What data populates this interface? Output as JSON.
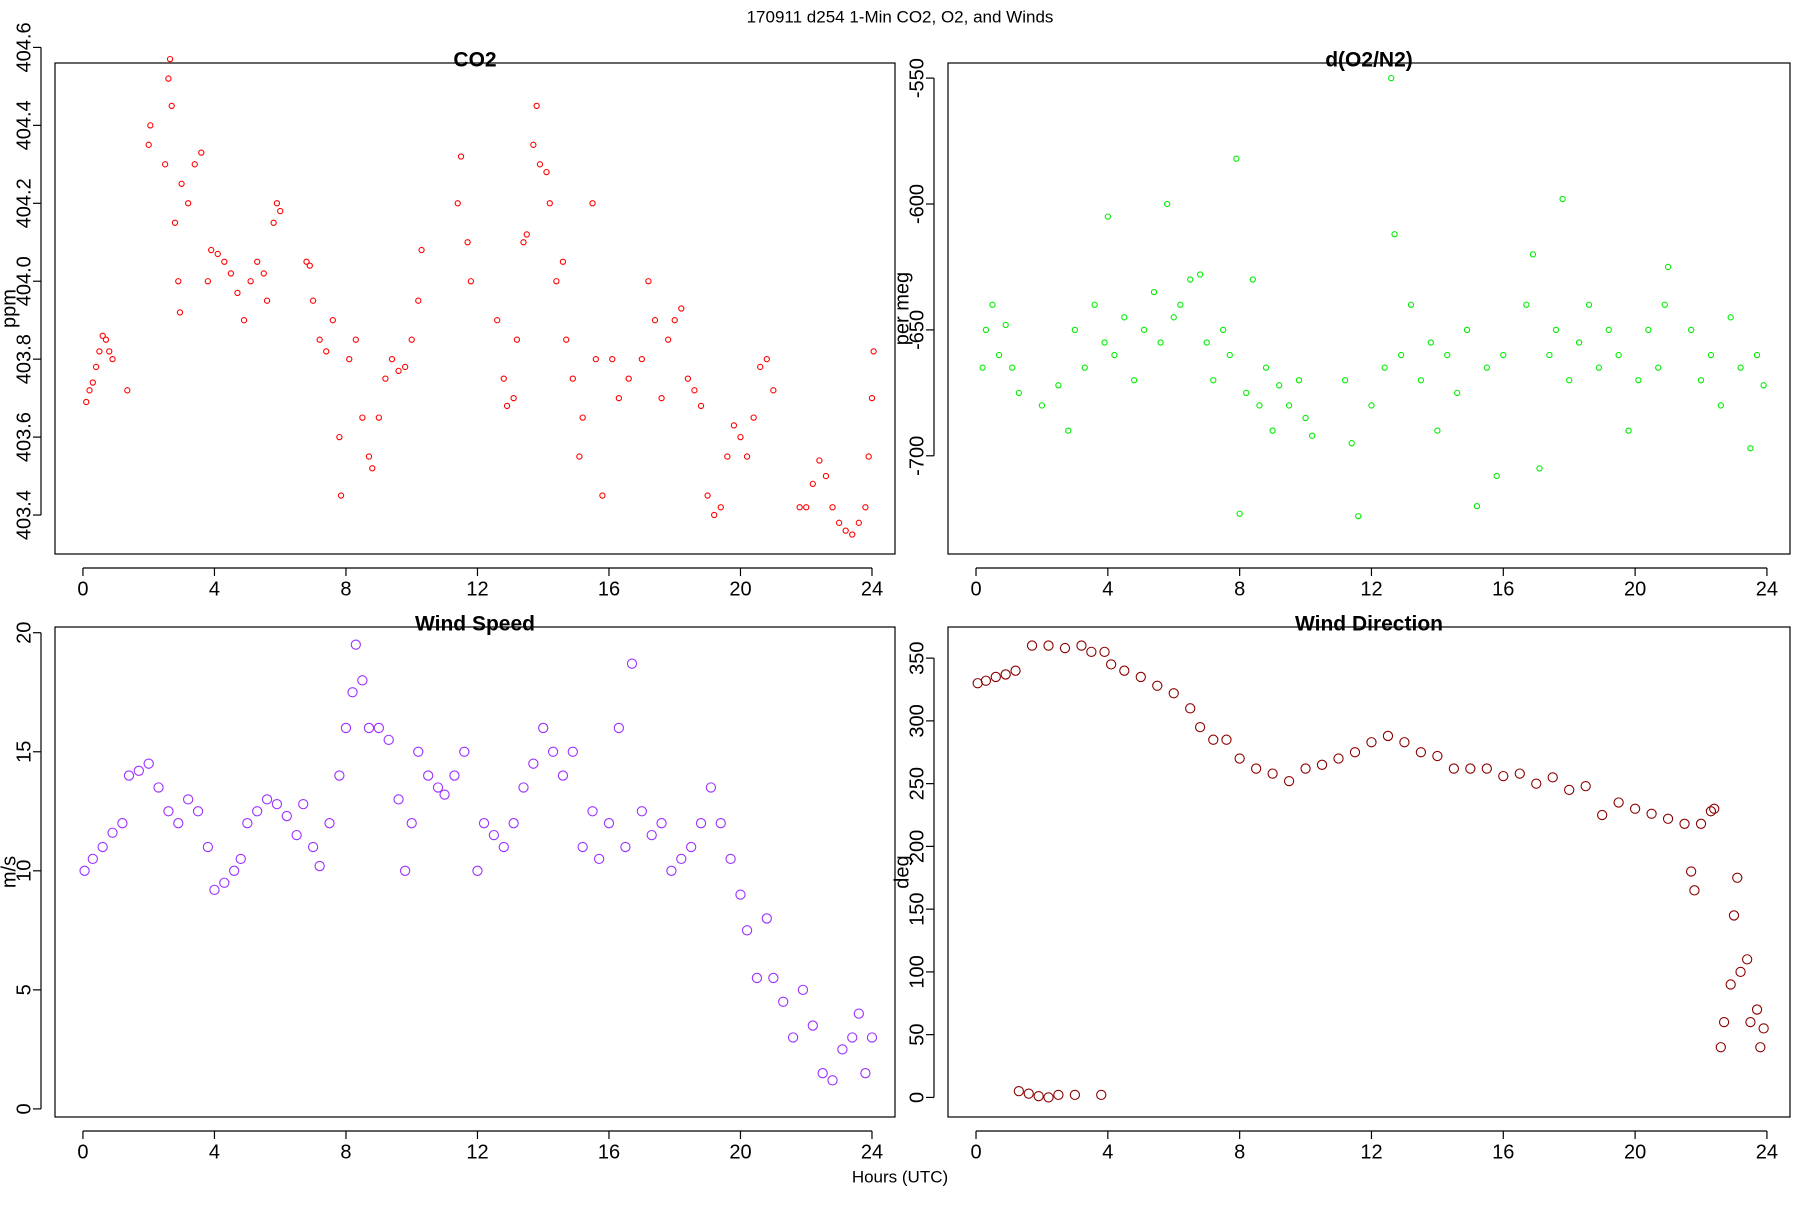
{
  "title": "170911   d254   1-Min CO2, O2, and Winds",
  "xlabel": "Hours (UTC)",
  "chart_data": [
    {
      "type": "scatter",
      "title": "CO2",
      "ylabel": "ppm",
      "color": "#ff0000",
      "xlim": [
        -0.85,
        24.7
      ],
      "xticks": [
        0,
        4,
        8,
        12,
        16,
        20,
        24
      ],
      "ylim": [
        403.3,
        404.56
      ],
      "yticks": [
        403.4,
        403.6,
        403.8,
        {
          "value": 404,
          "label": "404.0"
        },
        404.2,
        404.4,
        404.6
      ],
      "x": [
        0.1,
        0.2,
        0.3,
        0.4,
        0.5,
        0.6,
        0.7,
        0.8,
        0.9,
        1.35,
        2.0,
        2.05,
        2.5,
        2.6,
        2.65,
        2.7,
        2.8,
        2.9,
        2.95,
        3.0,
        3.2,
        3.4,
        3.6,
        3.8,
        3.9,
        4.1,
        4.3,
        4.5,
        4.7,
        4.9,
        5.1,
        5.3,
        5.5,
        5.6,
        5.8,
        5.9,
        6.0,
        6.8,
        6.9,
        7.0,
        7.2,
        7.4,
        7.6,
        7.8,
        7.85,
        8.1,
        8.3,
        8.5,
        8.7,
        8.8,
        9.0,
        9.2,
        9.4,
        9.6,
        9.8,
        10.0,
        10.2,
        10.3,
        11.4,
        11.5,
        11.7,
        11.8,
        12.6,
        12.8,
        12.9,
        13.1,
        13.2,
        13.4,
        13.5,
        13.7,
        13.8,
        13.9,
        14.1,
        14.2,
        14.4,
        14.6,
        14.7,
        14.9,
        15.1,
        15.2,
        15.5,
        15.6,
        15.8,
        16.1,
        16.3,
        16.6,
        17.0,
        17.2,
        17.4,
        17.6,
        17.8,
        18.0,
        18.2,
        18.4,
        18.6,
        18.8,
        19.0,
        19.2,
        19.4,
        19.6,
        19.8,
        20.0,
        20.2,
        20.4,
        20.6,
        20.8,
        21.0,
        21.8,
        22.0,
        22.2,
        22.4,
        22.6,
        22.8,
        23.0,
        23.2,
        23.4,
        23.6,
        23.8,
        23.9,
        24.0,
        24.05
      ],
      "values": [
        403.69,
        403.72,
        403.74,
        403.78,
        403.82,
        403.86,
        403.85,
        403.82,
        403.8,
        403.72,
        404.35,
        404.4,
        404.3,
        404.52,
        404.57,
        404.45,
        404.15,
        404.0,
        403.92,
        404.25,
        404.2,
        404.3,
        404.33,
        404.0,
        404.08,
        404.07,
        404.05,
        404.02,
        403.97,
        403.9,
        404.0,
        404.05,
        404.02,
        403.95,
        404.15,
        404.2,
        404.18,
        404.05,
        404.04,
        403.95,
        403.85,
        403.82,
        403.9,
        403.6,
        403.45,
        403.8,
        403.85,
        403.65,
        403.55,
        403.52,
        403.65,
        403.75,
        403.8,
        403.77,
        403.78,
        403.85,
        403.95,
        404.08,
        404.2,
        404.32,
        404.1,
        404.0,
        403.9,
        403.75,
        403.68,
        403.7,
        403.85,
        404.1,
        404.12,
        404.35,
        404.45,
        404.3,
        404.28,
        404.2,
        404.0,
        404.05,
        403.85,
        403.75,
        403.55,
        403.65,
        404.2,
        403.8,
        403.45,
        403.8,
        403.7,
        403.75,
        403.8,
        404.0,
        403.9,
        403.7,
        403.85,
        403.9,
        403.93,
        403.75,
        403.72,
        403.68,
        403.45,
        403.4,
        403.42,
        403.55,
        403.63,
        403.6,
        403.55,
        403.65,
        403.78,
        403.8,
        403.72,
        403.42,
        403.42,
        403.48,
        403.54,
        403.5,
        403.42,
        403.38,
        403.36,
        403.35,
        403.38,
        403.42,
        403.55,
        403.7,
        403.82
      ]
    },
    {
      "type": "scatter",
      "title": "d(O2/N2)",
      "ylabel": "per meg",
      "color": "#00ee00",
      "xlim": [
        -0.85,
        24.7
      ],
      "xticks": [
        0,
        4,
        8,
        12,
        16,
        20,
        24
      ],
      "ylim": [
        -739,
        -544
      ],
      "yticks": [
        -700,
        -650,
        -600,
        -550
      ],
      "x": [
        0.2,
        0.3,
        0.5,
        0.7,
        0.9,
        1.1,
        1.3,
        2.0,
        2.5,
        2.8,
        3.0,
        3.3,
        3.6,
        3.9,
        4.0,
        4.2,
        4.5,
        4.8,
        5.1,
        5.4,
        5.6,
        5.8,
        6.0,
        6.2,
        6.5,
        6.8,
        7.0,
        7.2,
        7.5,
        7.7,
        7.9,
        8.0,
        8.2,
        8.4,
        8.6,
        8.8,
        9.0,
        9.2,
        9.5,
        9.8,
        10.0,
        10.2,
        11.2,
        11.4,
        11.6,
        12.0,
        12.4,
        12.6,
        12.7,
        12.9,
        13.2,
        13.5,
        13.8,
        14.0,
        14.3,
        14.6,
        14.9,
        15.2,
        15.5,
        15.8,
        16.0,
        16.7,
        16.9,
        17.1,
        17.4,
        17.6,
        17.8,
        18.0,
        18.3,
        18.6,
        18.9,
        19.2,
        19.5,
        19.8,
        20.1,
        20.4,
        20.7,
        20.9,
        21.0,
        21.7,
        22.0,
        22.3,
        22.6,
        22.9,
        23.2,
        23.5,
        23.7,
        23.9
      ],
      "values": [
        -665,
        -650,
        -640,
        -660,
        -648,
        -665,
        -675,
        -680,
        -672,
        -690,
        -650,
        -665,
        -640,
        -655,
        -605,
        -660,
        -645,
        -670,
        -650,
        -635,
        -655,
        -600,
        -645,
        -640,
        -630,
        -628,
        -655,
        -670,
        -650,
        -660,
        -582,
        -723,
        -675,
        -630,
        -680,
        -665,
        -690,
        -672,
        -680,
        -670,
        -685,
        -692,
        -670,
        -695,
        -724,
        -680,
        -665,
        -550,
        -612,
        -660,
        -640,
        -670,
        -655,
        -690,
        -660,
        -675,
        -650,
        -720,
        -665,
        -708,
        -660,
        -640,
        -620,
        -705,
        -660,
        -650,
        -598,
        -670,
        -655,
        -640,
        -665,
        -650,
        -660,
        -690,
        -670,
        -650,
        -665,
        -640,
        -625,
        -650,
        -670,
        -660,
        -680,
        -645,
        -665,
        -697,
        -660,
        -672
      ]
    },
    {
      "type": "scatter",
      "title": "Wind Speed",
      "ylabel": "m/s",
      "color": "#9b30ff",
      "xlim": [
        -0.85,
        24.7
      ],
      "xticks": [
        0,
        4,
        8,
        12,
        16,
        20,
        24
      ],
      "ylim": [
        -0.34,
        20.24
      ],
      "yticks": [
        0,
        5,
        10,
        15,
        20
      ],
      "x": [
        0.05,
        0.3,
        0.6,
        0.9,
        1.2,
        1.4,
        1.7,
        2.0,
        2.3,
        2.6,
        2.9,
        3.2,
        3.5,
        3.8,
        4.0,
        4.3,
        4.6,
        4.8,
        5.0,
        5.3,
        5.6,
        5.9,
        6.2,
        6.5,
        6.7,
        7.0,
        7.2,
        7.5,
        7.8,
        8.0,
        8.2,
        8.3,
        8.5,
        8.7,
        9.0,
        9.3,
        9.6,
        9.8,
        10.0,
        10.2,
        10.5,
        10.8,
        11.0,
        11.3,
        11.6,
        12.0,
        12.2,
        12.5,
        12.8,
        13.1,
        13.4,
        13.7,
        14.0,
        14.3,
        14.6,
        14.9,
        15.2,
        15.5,
        15.7,
        16.0,
        16.3,
        16.5,
        16.7,
        17.0,
        17.3,
        17.6,
        17.9,
        18.2,
        18.5,
        18.8,
        19.1,
        19.4,
        19.7,
        20.0,
        20.2,
        20.5,
        20.8,
        21.0,
        21.3,
        21.6,
        21.9,
        22.2,
        22.5,
        22.8,
        23.1,
        23.4,
        23.6,
        23.8,
        24.0
      ],
      "values": [
        10,
        10.5,
        11,
        11.6,
        12,
        14,
        14.2,
        14.5,
        13.5,
        12.5,
        12,
        13,
        12.5,
        11,
        9.2,
        9.5,
        10,
        10.5,
        12,
        12.5,
        13,
        12.8,
        12.3,
        11.5,
        12.8,
        11,
        10.2,
        12,
        14,
        16,
        17.5,
        19.5,
        18,
        16,
        16,
        15.5,
        13,
        10,
        12,
        15,
        14,
        13.5,
        13.2,
        14,
        15,
        10,
        12,
        11.5,
        11,
        12,
        13.5,
        14.5,
        16,
        15,
        14,
        15,
        11,
        12.5,
        10.5,
        12,
        16,
        11,
        18.7,
        12.5,
        11.5,
        12,
        10,
        10.5,
        11,
        12,
        13.5,
        12,
        10.5,
        9,
        7.5,
        5.5,
        8,
        5.5,
        4.5,
        3,
        5,
        3.5,
        1.5,
        1.2,
        2.5,
        3,
        4,
        1.5,
        3
      ]
    },
    {
      "type": "scatter",
      "title": "Wind Direction",
      "ylabel": "deg",
      "color": "#8b0000",
      "xlim": [
        -0.85,
        24.7
      ],
      "xticks": [
        0,
        4,
        8,
        12,
        16,
        20,
        24
      ],
      "ylim": [
        -15.6,
        374.8
      ],
      "yticks": [
        0,
        50,
        100,
        150,
        200,
        250,
        300,
        350
      ],
      "x": [
        0.05,
        0.3,
        0.6,
        0.9,
        1.2,
        1.3,
        1.6,
        1.7,
        1.9,
        2.2,
        2.2,
        2.5,
        2.7,
        3.0,
        3.2,
        3.5,
        3.8,
        3.9,
        4.1,
        4.5,
        5.0,
        5.5,
        6.0,
        6.5,
        6.8,
        7.2,
        7.6,
        8.0,
        8.5,
        9.0,
        9.5,
        10.0,
        10.5,
        11.0,
        11.5,
        12.0,
        12.5,
        13.0,
        13.5,
        14.0,
        14.5,
        15.0,
        15.5,
        16.0,
        16.5,
        17.0,
        17.5,
        18.0,
        18.5,
        19.0,
        19.5,
        20.0,
        20.5,
        21.0,
        21.5,
        21.7,
        21.8,
        22.0,
        22.3,
        22.4,
        22.6,
        22.7,
        22.9,
        23.0,
        23.1,
        23.2,
        23.4,
        23.5,
        23.7,
        23.8,
        23.9
      ],
      "values": [
        330,
        332,
        335,
        337,
        340,
        5,
        3,
        360,
        1,
        0,
        360,
        2,
        358,
        2,
        360,
        355,
        2,
        355,
        345,
        340,
        335,
        328,
        322,
        310,
        295,
        285,
        285,
        270,
        262,
        258,
        252,
        262,
        265,
        270,
        275,
        283,
        288,
        283,
        275,
        272,
        262,
        262,
        262,
        256,
        258,
        250,
        255,
        245,
        248,
        225,
        235,
        230,
        226,
        222,
        218,
        180,
        165,
        218,
        228,
        230,
        40,
        60,
        90,
        145,
        175,
        100,
        110,
        60,
        70,
        40,
        55
      ]
    }
  ]
}
